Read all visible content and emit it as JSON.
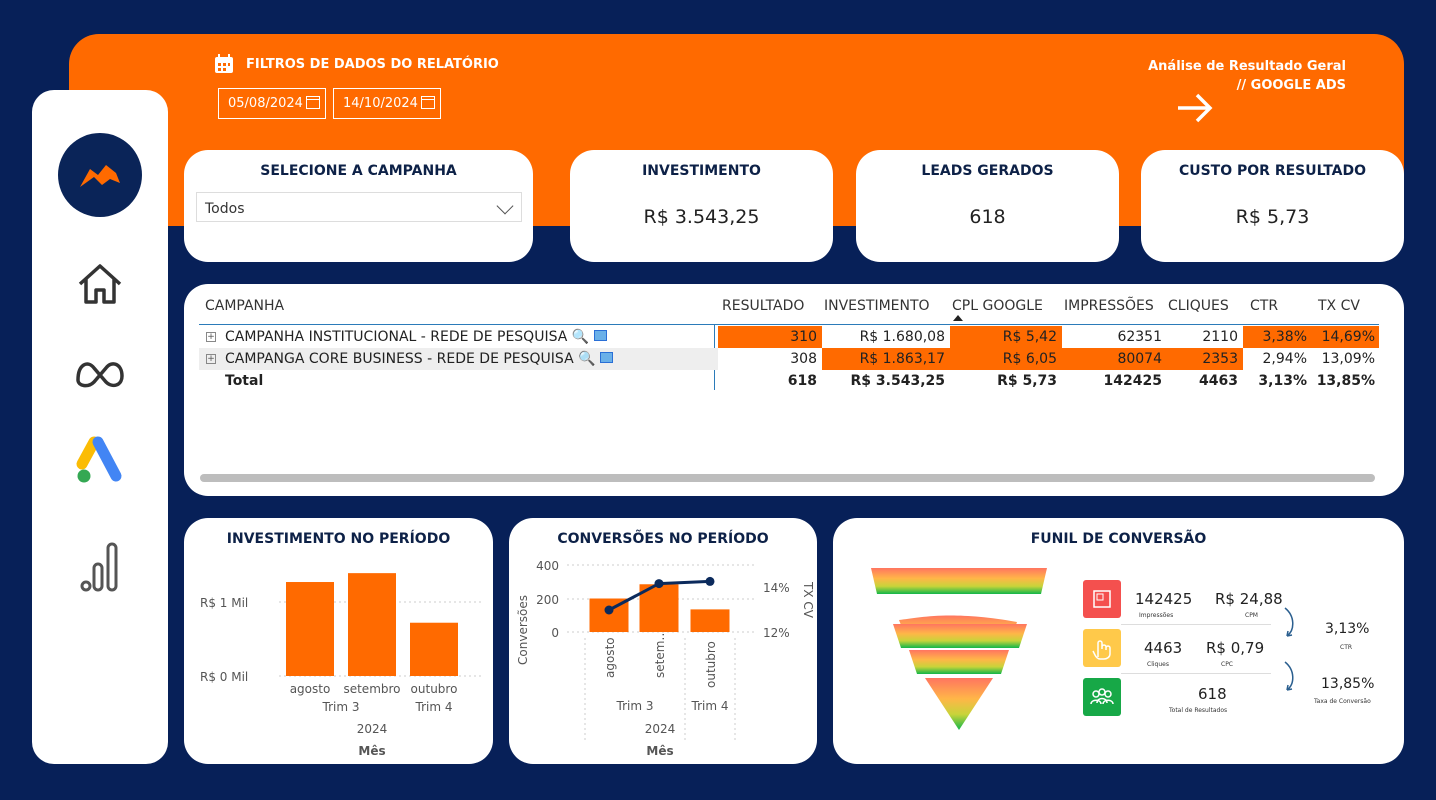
{
  "header": {
    "filter_title": "FILTROS DE DADOS DO RELATÓRIO",
    "date_start": "05/08/2024",
    "date_end": "14/10/2024",
    "title_line1": "Análise de Resultado Geral",
    "title_line2": "// GOOGLE ADS"
  },
  "sidebar": {
    "items": [
      "logo-icon",
      "home-icon",
      "meta-icon",
      "google-ads-icon",
      "analytics-icon"
    ]
  },
  "campaign_select": {
    "title": "SELECIONE A CAMPANHA",
    "value": "Todos"
  },
  "kpis": [
    {
      "title": "INVESTIMENTO",
      "value": "R$ 3.543,25"
    },
    {
      "title": "LEADS GERADOS",
      "value": "618"
    },
    {
      "title": "CUSTO POR RESULTADO",
      "value": "R$ 5,73"
    }
  ],
  "table": {
    "headers": [
      "CAMPANHA",
      "RESULTADO",
      "INVESTIMENTO",
      "CPL GOOGLE",
      "IMPRESSÕES",
      "CLIQUES",
      "CTR",
      "TX CV"
    ],
    "rows": [
      {
        "name": "CAMPANHA INSTITUCIONAL - REDE DE PESQUISA",
        "cells": [
          "310",
          "R$ 1.680,08",
          "R$ 5,42",
          "62351",
          "2110",
          "3,38%",
          "14,69%"
        ]
      },
      {
        "name": "CAMPANGA CORE BUSINESS - REDE DE PESQUISA",
        "cells": [
          "308",
          "R$ 1.863,17",
          "R$ 6,05",
          "80074",
          "2353",
          "2,94%",
          "13,09%"
        ]
      }
    ],
    "total": {
      "label": "Total",
      "cells": [
        "618",
        "R$ 3.543,25",
        "R$ 5,73",
        "142425",
        "4463",
        "3,13%",
        "13,85%"
      ]
    }
  },
  "chart_invest": {
    "title": "INVESTIMENTO NO PERÍODO",
    "ytick_top": "R$ 1 Mil",
    "ytick_bottom": "R$ 0 Mil",
    "months": [
      "agosto",
      "setembro",
      "outubro"
    ],
    "quarters": [
      "Trim 3",
      "Trim 4"
    ],
    "year": "2024",
    "xlabel": "Mês"
  },
  "chart_conv": {
    "title": "CONVERSÕES NO PERÍODO",
    "ylabel": "Conversões",
    "y2label": "TX CV",
    "yticks": [
      "400",
      "200",
      "0"
    ],
    "y2ticks": [
      "14%",
      "12%"
    ],
    "months": [
      "agosto",
      "setem…",
      "outubro"
    ],
    "quarters": [
      "Trim 3",
      "Trim 4"
    ],
    "year": "2024",
    "xlabel": "Mês"
  },
  "chart_data": [
    {
      "type": "bar",
      "categories": [
        "agosto",
        "setembro",
        "outubro"
      ],
      "values": [
        1270,
        1390,
        720
      ],
      "ylim": [
        0,
        1500
      ],
      "title": "INVESTIMENTO NO PERÍODO",
      "xlabel": "Mês"
    },
    {
      "type": "bar",
      "categories": [
        "agosto",
        "setembro",
        "outubro"
      ],
      "series": [
        {
          "name": "Conversões",
          "values": [
            200,
            285,
            135
          ]
        },
        {
          "name": "TX CV",
          "values": [
            13.0,
            14.2,
            14.3
          ]
        }
      ],
      "ylim": [
        0,
        400
      ],
      "y2lim": [
        12,
        15
      ],
      "title": "CONVERSÕES NO PERÍODO",
      "xlabel": "Mês",
      "ylabel": "Conversões"
    }
  ],
  "funnel": {
    "title": "FUNIL DE CONVERSÃO",
    "impressions": "142425",
    "impressions_label": "Impressões",
    "cpm": "R$ 24,88",
    "cpm_label": "CPM",
    "clicks": "4463",
    "clicks_label": "Cliques",
    "cpc": "R$ 0,79",
    "cpc_label": "CPC",
    "results": "618",
    "results_label": "Total de Resultados",
    "ctr": "3,13%",
    "ctr_label": "CTR",
    "conv_rate": "13,85%",
    "conv_rate_label": "Taxa de Conversão"
  },
  "colors": {
    "navy": "#072058",
    "orange": "#ff6a00"
  }
}
